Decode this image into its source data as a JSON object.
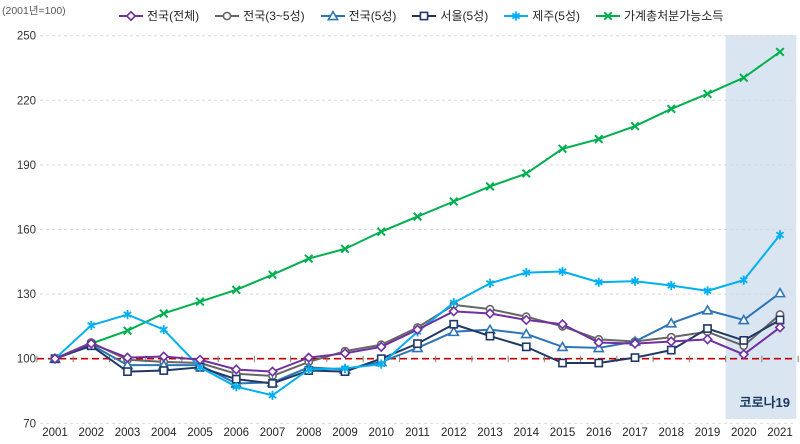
{
  "header": {
    "axis_note": "(2001년=100)"
  },
  "colors": {
    "national_all": "#7030A0",
    "national_3_5star": "#666666",
    "national_5star": "#2E75B6",
    "seoul_5star": "#203864",
    "jeju_5star": "#00B0F0",
    "household_income": "#00B050",
    "baseline_red": "#C00000",
    "gridline": "#D9D9D9",
    "tick": "#7F7F7F",
    "axis_text": "#333333",
    "covid_band": "#DAE5F2",
    "covid_label_text": "#17375E"
  },
  "chart_data": {
    "type": "line",
    "title": "",
    "xlabel": "",
    "ylabel": "(2001년=100)",
    "x": [
      2001,
      2002,
      2003,
      2004,
      2005,
      2006,
      2007,
      2008,
      2009,
      2010,
      2011,
      2012,
      2013,
      2014,
      2015,
      2016,
      2017,
      2018,
      2019,
      2020,
      2021
    ],
    "yticks": [
      70,
      100,
      130,
      160,
      190,
      220,
      250
    ],
    "ylim": [
      70,
      250
    ],
    "baseline": 100,
    "grid": "horizontal-dashed",
    "legend_position": "top",
    "series": [
      {
        "id": "national-all",
        "name": "전국(전체)",
        "marker": "diamond",
        "color_key": "national_all",
        "values": [
          100,
          107,
          100.5,
          101,
          99.5,
          95,
          94,
          100.5,
          102.5,
          105.5,
          113.5,
          122,
          121,
          118,
          116,
          107.5,
          107,
          108,
          109,
          102,
          114.5
        ]
      },
      {
        "id": "national-3-5star",
        "name": "전국(3~5성)",
        "marker": "circle",
        "color_key": "national_3_5star",
        "values": [
          100,
          107.5,
          99.5,
          98.5,
          98,
          93,
          92,
          98.5,
          103.5,
          106.5,
          114.5,
          125,
          123,
          119.5,
          115,
          109,
          108,
          110,
          112.5,
          106,
          120.5
        ]
      },
      {
        "id": "national-5star",
        "name": "전국(5성)",
        "marker": "triangle",
        "color_key": "national_5star",
        "values": [
          100,
          106.5,
          97,
          97,
          97,
          88.5,
          89,
          96,
          95,
          98.5,
          105,
          112.5,
          113.5,
          111.5,
          105.5,
          105,
          108,
          116.5,
          122.5,
          118,
          130.5
        ]
      },
      {
        "id": "seoul-5star",
        "name": "서울(5성)",
        "marker": "square",
        "color_key": "seoul_5star",
        "values": [
          100,
          106,
          94,
          94.5,
          96,
          90.5,
          88.5,
          94.5,
          94,
          100,
          107,
          116,
          110.5,
          105.5,
          98,
          98,
          100.5,
          104,
          114,
          108.5,
          118
        ]
      },
      {
        "id": "jeju-5star",
        "name": "제주(5성)",
        "marker": "asterisk",
        "color_key": "jeju_5star",
        "values": [
          100,
          115.5,
          120.5,
          113.5,
          96,
          87,
          83,
          95,
          95.5,
          97.5,
          112.5,
          126,
          135,
          140,
          140.5,
          135.5,
          136,
          134,
          131.5,
          136.5,
          157.5
        ]
      },
      {
        "id": "household-income",
        "name": "가계총처분가능소득",
        "marker": "x",
        "color_key": "household_income",
        "values": [
          100,
          107,
          113,
          121,
          126.5,
          132,
          139,
          146.5,
          151,
          159,
          166,
          173,
          180,
          186,
          197.5,
          202,
          208,
          216,
          223,
          230.5,
          242.5
        ]
      }
    ],
    "annotations": {
      "covid_label": "코로나19",
      "covid_band": {
        "from_year": 2019.5,
        "to_year": 2021.45
      }
    }
  }
}
